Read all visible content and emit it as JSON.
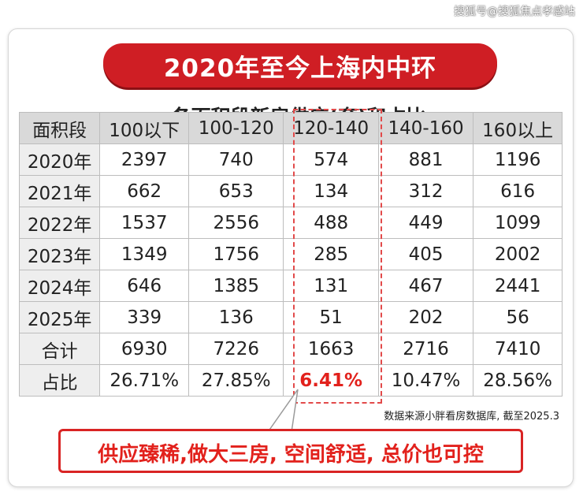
{
  "watermark": "搜狐号@搜狐焦点孝感站",
  "title": "2020年至今上海内中环",
  "subtitle": "各面积段新房供应(套)和占比",
  "table": {
    "header": [
      "面积段",
      "100以下",
      "100-120",
      "120-140",
      "140-160",
      "160以上"
    ],
    "rows": [
      [
        "2020年",
        "2397",
        "740",
        "574",
        "881",
        "1196"
      ],
      [
        "2021年",
        "662",
        "653",
        "134",
        "312",
        "616"
      ],
      [
        "2022年",
        "1537",
        "2556",
        "488",
        "449",
        "1099"
      ],
      [
        "2023年",
        "1349",
        "1756",
        "285",
        "405",
        "2002"
      ],
      [
        "2024年",
        "646",
        "1385",
        "131",
        "467",
        "2441"
      ],
      [
        "2025年",
        "339",
        "136",
        "51",
        "202",
        "56"
      ],
      [
        "合计",
        "6930",
        "7226",
        "1663",
        "2716",
        "7410"
      ],
      [
        "占比",
        "26.71%",
        "27.85%",
        "6.41%",
        "10.47%",
        "28.56%"
      ]
    ],
    "highlight_column": "120-140"
  },
  "source_note": "数据来源小胖看房数据库, 截至2025.3",
  "callout": "供应臻稀,做大三房, 空间舒适, 总价也可控",
  "colors": {
    "accent_red": "#cf1e24",
    "highlight_text": "#e2211c",
    "header_bg": "#d9d9d9"
  }
}
